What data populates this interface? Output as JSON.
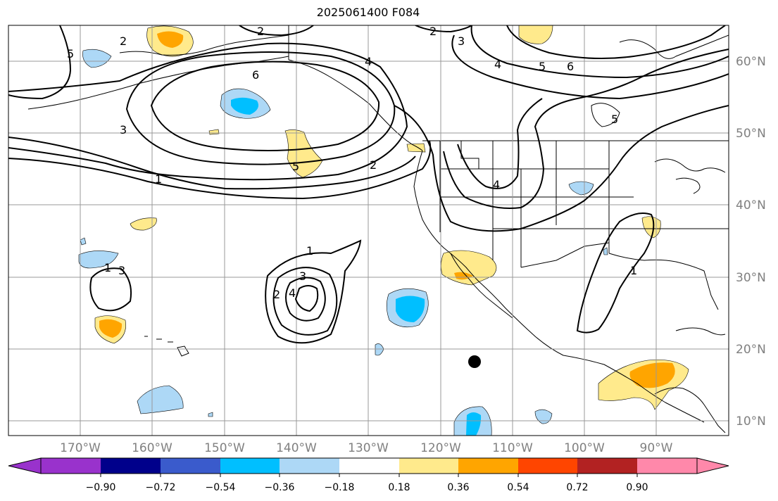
{
  "title": "2025061400 F084",
  "longitude_labels": [
    "170°W",
    "160°W",
    "150°W",
    "140°W",
    "130°W",
    "120°W",
    "110°W",
    "100°W",
    "90°W"
  ],
  "latitude_labels": [
    "60°N",
    "50°N",
    "40°N",
    "30°N",
    "20°N",
    "10°N"
  ],
  "colorbar": {
    "tick_labels": [
      "−0.90",
      "−0.72",
      "−0.54",
      "−0.36",
      "−0.18",
      "0.18",
      "0.36",
      "0.54",
      "0.72",
      "0.90"
    ],
    "colors": [
      "#9932CC",
      "#00008B",
      "#3A5BCC",
      "#00BFFF",
      "#ADD8F6",
      "#FFFFFF",
      "#FFEA8C",
      "#FFA500",
      "#FF4500",
      "#B22222",
      "#FF88AA"
    ]
  },
  "contour_labels": [
    "2",
    "3",
    "5",
    "2",
    "3",
    "4",
    "5",
    "6",
    "6",
    "4",
    "3",
    "1",
    "2",
    "5",
    "2",
    "4",
    "5",
    "1",
    "1",
    "3",
    "2",
    "4",
    "1"
  ],
  "colors": {
    "contour": "#000000",
    "grid": "#999999",
    "land_outline": "#000000"
  }
}
